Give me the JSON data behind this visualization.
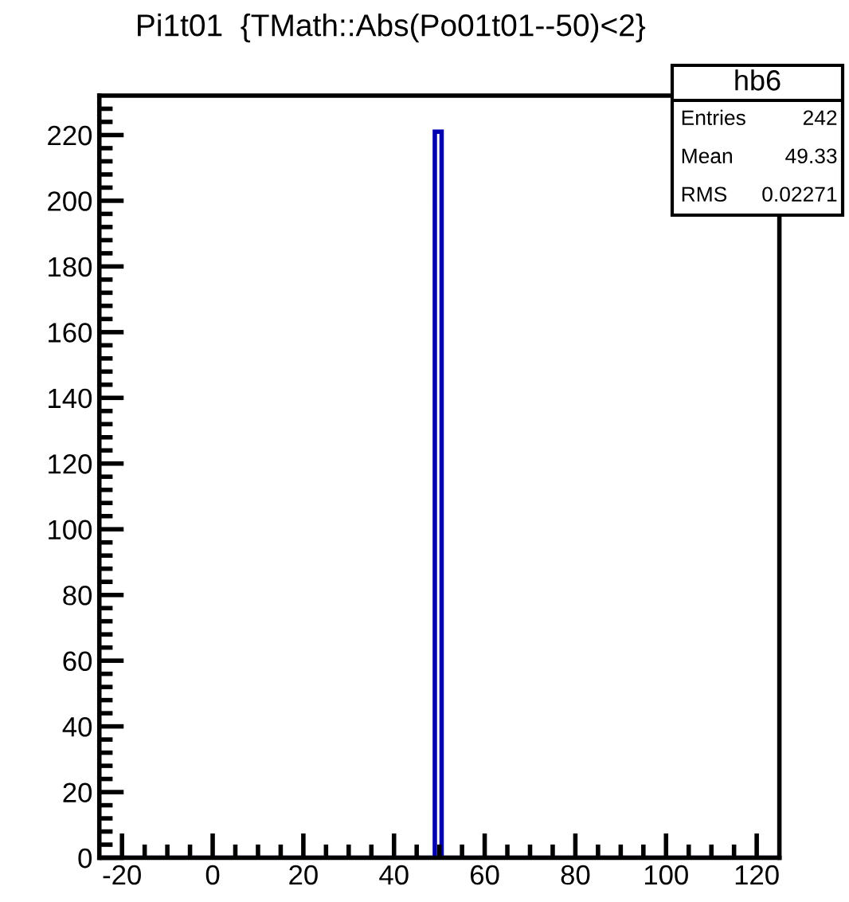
{
  "chart_data": {
    "type": "histogram",
    "title": "Pi1t01  {TMath::Abs(Po01t01--50)<2}",
    "bins": [
      -25,
      49,
      50.5,
      125
    ],
    "values": [
      0,
      221,
      0
    ],
    "color": "#0000b0",
    "xlim": [
      -25,
      125
    ],
    "ylim": [
      0,
      232
    ],
    "xticks": [
      -20,
      0,
      20,
      40,
      60,
      80,
      100,
      120,
      {
        "value": -15,
        "label": null
      },
      {
        "value": -10,
        "label": null
      },
      {
        "value": -5,
        "label": null
      },
      {
        "value": 5,
        "label": null
      },
      {
        "value": 10,
        "label": null
      },
      {
        "value": 15,
        "label": null
      },
      {
        "value": 25,
        "label": null
      },
      {
        "value": 30,
        "label": null
      },
      {
        "value": 35,
        "label": null
      },
      {
        "value": 45,
        "label": null
      },
      {
        "value": 50,
        "label": null
      },
      {
        "value": 55,
        "label": null
      },
      {
        "value": 65,
        "label": null
      },
      {
        "value": 70,
        "label": null
      },
      {
        "value": 75,
        "label": null
      },
      {
        "value": 85,
        "label": null
      },
      {
        "value": 90,
        "label": null
      },
      {
        "value": 95,
        "label": null
      },
      {
        "value": 105,
        "label": null
      },
      {
        "value": 110,
        "label": null
      },
      {
        "value": 115,
        "label": null
      }
    ],
    "yticks": [
      0,
      20,
      40,
      60,
      80,
      100,
      120,
      140,
      160,
      180,
      200,
      220,
      {
        "value": 4,
        "label": null
      },
      {
        "value": 8,
        "label": null
      },
      {
        "value": 12,
        "label": null
      },
      {
        "value": 16,
        "label": null
      },
      {
        "value": 24,
        "label": null
      },
      {
        "value": 28,
        "label": null
      },
      {
        "value": 32,
        "label": null
      },
      {
        "value": 36,
        "label": null
      },
      {
        "value": 44,
        "label": null
      },
      {
        "value": 48,
        "label": null
      },
      {
        "value": 52,
        "label": null
      },
      {
        "value": 56,
        "label": null
      },
      {
        "value": 64,
        "label": null
      },
      {
        "value": 68,
        "label": null
      },
      {
        "value": 72,
        "label": null
      },
      {
        "value": 76,
        "label": null
      },
      {
        "value": 84,
        "label": null
      },
      {
        "value": 88,
        "label": null
      },
      {
        "value": 92,
        "label": null
      },
      {
        "value": 96,
        "label": null
      },
      {
        "value": 104,
        "label": null
      },
      {
        "value": 108,
        "label": null
      },
      {
        "value": 112,
        "label": null
      },
      {
        "value": 116,
        "label": null
      },
      {
        "value": 124,
        "label": null
      },
      {
        "value": 128,
        "label": null
      },
      {
        "value": 132,
        "label": null
      },
      {
        "value": 136,
        "label": null
      },
      {
        "value": 144,
        "label": null
      },
      {
        "value": 148,
        "label": null
      },
      {
        "value": 152,
        "label": null
      },
      {
        "value": 156,
        "label": null
      },
      {
        "value": 164,
        "label": null
      },
      {
        "value": 168,
        "label": null
      },
      {
        "value": 172,
        "label": null
      },
      {
        "value": 176,
        "label": null
      },
      {
        "value": 184,
        "label": null
      },
      {
        "value": 188,
        "label": null
      },
      {
        "value": 192,
        "label": null
      },
      {
        "value": 196,
        "label": null
      },
      {
        "value": 204,
        "label": null
      },
      {
        "value": 208,
        "label": null
      },
      {
        "value": 212,
        "label": null
      },
      {
        "value": 216,
        "label": null
      },
      {
        "value": 224,
        "label": null
      },
      {
        "value": 228,
        "label": null
      }
    ],
    "annotations": [
      "hb6",
      "Entries",
      "242",
      "Mean",
      "49.33",
      "RMS",
      "0.02271"
    ],
    "grid": false,
    "legend": false
  }
}
